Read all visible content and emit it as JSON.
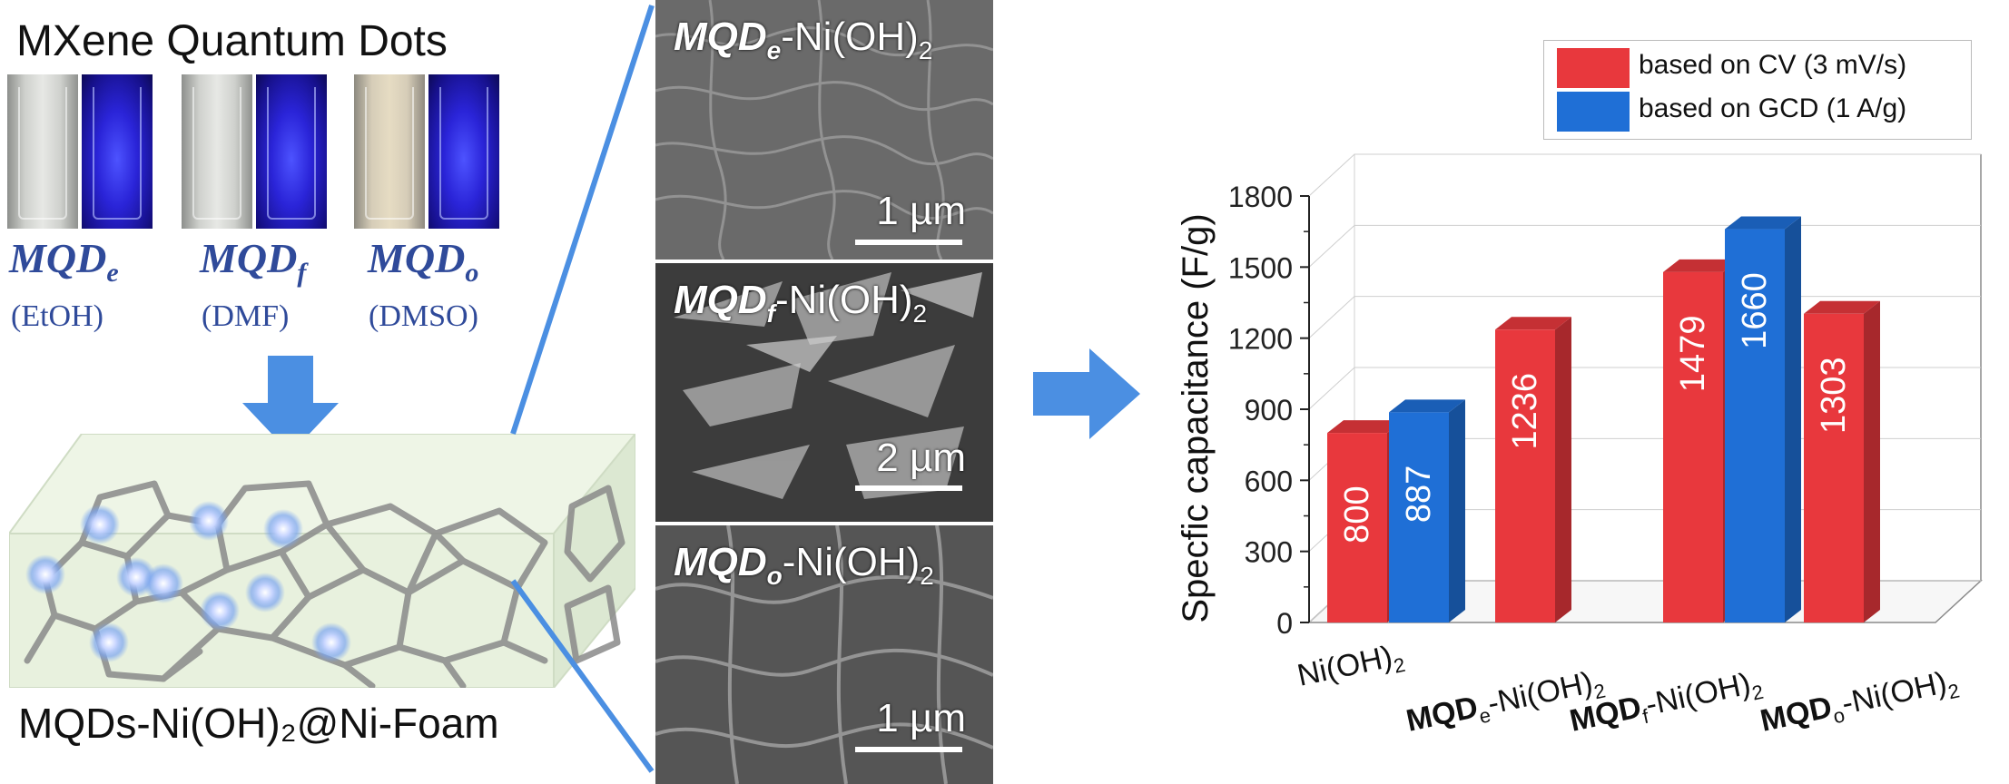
{
  "left_panel": {
    "title": "MXene Quantum Dots",
    "samples": [
      {
        "name": "MQD",
        "sub": "e",
        "solvent": "(EtOH)"
      },
      {
        "name": "MQD",
        "sub": "f",
        "solvent": "(DMF)"
      },
      {
        "name": "MQD",
        "sub": "o",
        "solvent": "(DMSO)"
      }
    ],
    "foam_label": "MQDs-Ni(OH)₂@Ni-Foam"
  },
  "sem_panels": [
    {
      "prefix": "MQD",
      "sub": "e",
      "suffix": "-Ni(OH)",
      "sub2": "2",
      "scale": "1 µm"
    },
    {
      "prefix": "MQD",
      "sub": "f",
      "suffix": "-Ni(OH)",
      "sub2": "2",
      "scale": "2 µm"
    },
    {
      "prefix": "MQD",
      "sub": "o",
      "suffix": "-Ni(OH)",
      "sub2": "2",
      "scale": "1 µm"
    }
  ],
  "colors": {
    "cv": "#e8383d",
    "gcd": "#1f6fd6",
    "accent_blue": "#4b8fe2",
    "label_blue": "#2f4a9a"
  },
  "chart_data": {
    "type": "bar",
    "ylabel": "Specfic capacitance (F/g)",
    "ylim": [
      0,
      1800
    ],
    "yticks": [
      0,
      300,
      600,
      900,
      1200,
      1500,
      1800
    ],
    "legend_position": "top-right",
    "categories": [
      {
        "prefix": "",
        "sub": "",
        "suffix": "Ni(OH)",
        "sub2": "2"
      },
      {
        "prefix": "MQD",
        "sub": "e",
        "suffix": "-Ni(OH)",
        "sub2": "2"
      },
      {
        "prefix": "MQD",
        "sub": "f",
        "suffix": "-Ni(OH)",
        "sub2": "2"
      },
      {
        "prefix": "MQD",
        "sub": "o",
        "suffix": "-Ni(OH)",
        "sub2": "2"
      }
    ],
    "series": [
      {
        "name": "based on CV (3 mV/s)",
        "values": [
          800,
          1236,
          1479,
          1303
        ]
      },
      {
        "name": "based on GCD (1 A/g)",
        "values": [
          887,
          null,
          1660,
          null
        ]
      }
    ]
  }
}
